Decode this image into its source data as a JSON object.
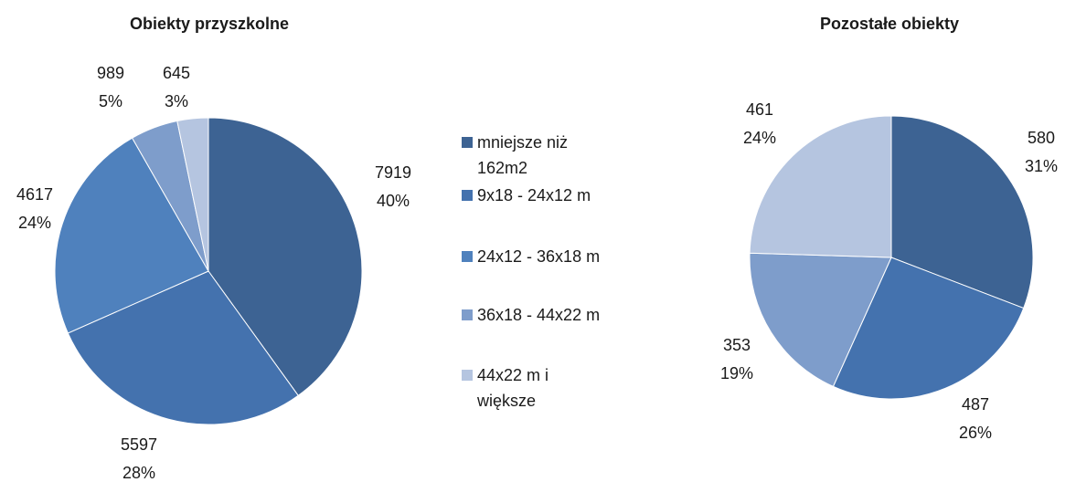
{
  "chart_data": [
    {
      "type": "pie",
      "title": "Obiekty przyszkolne",
      "categories": [
        "mniejsze niż 162m2",
        "9x18 - 24x12 m",
        "24x12 - 36x18 m",
        "36x18 - 44x22 m",
        "44x22 m i większe"
      ],
      "values": [
        7919,
        5597,
        4617,
        989,
        645
      ],
      "percent_labels": [
        "40%",
        "28%",
        "24%",
        "5%",
        "3%"
      ]
    },
    {
      "type": "pie",
      "title": "Pozostałe obiekty",
      "categories": [
        "mniejsze niż 162m2",
        "9x18 - 24x12 m",
        "36x18 - 44x22 m",
        "44x22 m i większe"
      ],
      "values": [
        580,
        487,
        353,
        461
      ],
      "percent_labels": [
        "31%",
        "26%",
        "19%",
        "24%"
      ]
    }
  ],
  "legend": {
    "position": "center",
    "items": [
      {
        "label_lines": [
          "mniejsze niż",
          "162m2"
        ],
        "color": "#3D6393"
      },
      {
        "label_lines": [
          "9x18 - 24x12 m"
        ],
        "color": "#4472AE"
      },
      {
        "label_lines": [
          "24x12 - 36x18 m"
        ],
        "color": "#4F81BD"
      },
      {
        "label_lines": [
          "36x18 - 44x22 m"
        ],
        "color": "#7E9DCB"
      },
      {
        "label_lines": [
          "44x22 m i",
          "większe"
        ],
        "color": "#B5C5E0"
      }
    ]
  },
  "colors": {
    "left": [
      "#3D6393",
      "#4472AE",
      "#4F81BD",
      "#7E9DCB",
      "#B5C5E0"
    ],
    "right": [
      "#3D6393",
      "#4472AE",
      "#7E9DCB",
      "#B5C5E0"
    ]
  }
}
